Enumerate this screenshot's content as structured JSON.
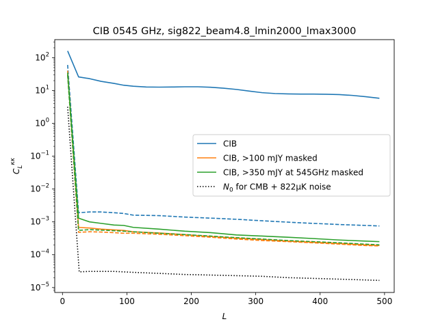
{
  "chart_data": {
    "type": "line",
    "title": "CIB 0545 GHz, sig822_beam4.8_lmin2000_lmax3000",
    "xlabel": "L",
    "ylabel": "C_L^{κκ}",
    "xlim": [
      -12,
      515
    ],
    "ylim_exp": [
      -5.15,
      2.55
    ],
    "yscale": "log",
    "x_ticks": [
      "0",
      "100",
      "200",
      "300",
      "400",
      "500"
    ],
    "x_tick_values": [
      0,
      100,
      200,
      300,
      400,
      500
    ],
    "y_ticks": [
      {
        "base": "10",
        "exp": "2",
        "value": 100
      },
      {
        "base": "10",
        "exp": "1",
        "value": 10
      },
      {
        "base": "10",
        "exp": "0",
        "value": 1
      },
      {
        "base": "10",
        "exp": "−1",
        "value": 0.1
      },
      {
        "base": "10",
        "exp": "−2",
        "value": 0.01
      },
      {
        "base": "10",
        "exp": "−3",
        "value": 0.001
      },
      {
        "base": "10",
        "exp": "−4",
        "value": 0.0001
      },
      {
        "base": "10",
        "exp": "−5",
        "value": 1e-05
      }
    ],
    "legend_position": "center-right",
    "series": [
      {
        "name": "CIB",
        "color": "#1f77b4",
        "style": "solid",
        "x": [
          8,
          25,
          42,
          60,
          80,
          95,
          110,
          130,
          150,
          170,
          190,
          210,
          230,
          250,
          270,
          290,
          310,
          330,
          350,
          370,
          390,
          410,
          430,
          450,
          470,
          492
        ],
        "y": [
          160,
          26,
          23,
          19,
          16.5,
          14.5,
          13.5,
          12.8,
          12.7,
          12.8,
          13,
          13,
          12.6,
          11.8,
          10.8,
          9.6,
          8.6,
          8.1,
          7.9,
          7.8,
          7.8,
          7.7,
          7.5,
          7.1,
          6.5,
          5.8
        ]
      },
      {
        "name": "",
        "color": "#1f77b4",
        "style": "dashed",
        "x": [
          8,
          25,
          42,
          60,
          80,
          95,
          110,
          150,
          190,
          230,
          270,
          310,
          350,
          390,
          430,
          470,
          492
        ],
        "y": [
          60,
          0.0019,
          0.002,
          0.002,
          0.0019,
          0.0018,
          0.0016,
          0.00155,
          0.0014,
          0.0013,
          0.0012,
          0.00108,
          0.00098,
          0.0009,
          0.00083,
          0.00078,
          0.00075
        ]
      },
      {
        "name": "CIB, >100 mJY masked",
        "color": "#ff7f0e",
        "style": "solid",
        "x": [
          8,
          25,
          42,
          60,
          80,
          95,
          110,
          150,
          190,
          230,
          270,
          310,
          350,
          390,
          430,
          470,
          492
        ],
        "y": [
          40,
          0.00068,
          0.00065,
          0.0006,
          0.00057,
          0.00055,
          0.0005,
          0.00046,
          0.00041,
          0.00036,
          0.00032,
          0.00029,
          0.00026,
          0.00024,
          0.00022,
          0.0002,
          0.00019
        ]
      },
      {
        "name": "",
        "color": "#ff7f0e",
        "style": "dashed",
        "x": [
          8,
          25,
          42,
          60,
          80,
          95,
          110,
          150,
          190,
          230,
          270,
          310,
          350,
          390,
          430,
          470,
          492
        ],
        "y": [
          30,
          0.00048,
          0.0005,
          0.00049,
          0.00047,
          0.00045,
          0.00045,
          0.00042,
          0.00038,
          0.00034,
          0.0003,
          0.00027,
          0.00025,
          0.00023,
          0.00021,
          0.00019,
          0.000185
        ]
      },
      {
        "name": "CIB, >350 mJY at 545GHz masked",
        "color": "#2ca02c",
        "style": "solid",
        "x": [
          8,
          25,
          42,
          60,
          80,
          95,
          110,
          150,
          190,
          230,
          270,
          310,
          350,
          390,
          430,
          470,
          492
        ],
        "y": [
          35,
          0.0013,
          0.001,
          0.0009,
          0.0008,
          0.00078,
          0.00068,
          0.0006,
          0.00052,
          0.00047,
          0.0004,
          0.00037,
          0.00034,
          0.00031,
          0.00028,
          0.00026,
          0.00025
        ]
      },
      {
        "name": "",
        "color": "#2ca02c",
        "style": "dashed",
        "x": [
          8,
          25,
          42,
          60,
          80,
          95,
          110,
          150,
          190,
          230,
          270,
          310,
          350,
          390,
          430,
          470,
          492
        ],
        "y": [
          30,
          0.00055,
          0.00058,
          0.00056,
          0.00054,
          0.00052,
          0.0005,
          0.00045,
          0.00041,
          0.00037,
          0.00033,
          0.0003,
          0.00027,
          0.00025,
          0.00023,
          0.00021,
          0.0002
        ]
      },
      {
        "name": "N₀ for CMB + 822μK noise",
        "color": "#000000",
        "style": "dotted",
        "x": [
          8,
          26,
          42,
          60,
          80,
          95,
          110,
          150,
          190,
          230,
          270,
          310,
          350,
          390,
          430,
          470,
          492
        ],
        "y": [
          3.2,
          3e-05,
          3.1e-05,
          3.1e-05,
          3.1e-05,
          3e-05,
          2.9e-05,
          2.7e-05,
          2.5e-05,
          2.4e-05,
          2.3e-05,
          2.2e-05,
          2e-05,
          1.9e-05,
          1.8e-05,
          1.7e-05,
          1.65e-05
        ]
      }
    ],
    "legend": [
      {
        "label": "CIB",
        "color": "#1f77b4",
        "style": "solid"
      },
      {
        "label": "CIB, >100 mJY masked",
        "color": "#ff7f0e",
        "style": "solid"
      },
      {
        "label": "CIB, >350 mJY at 545GHz masked",
        "color": "#2ca02c",
        "style": "solid"
      },
      {
        "label_prefix": "N",
        "label_sub": "0",
        "label_suffix": " for CMB + 822μK noise",
        "color": "#000000",
        "style": "dotted"
      }
    ]
  }
}
